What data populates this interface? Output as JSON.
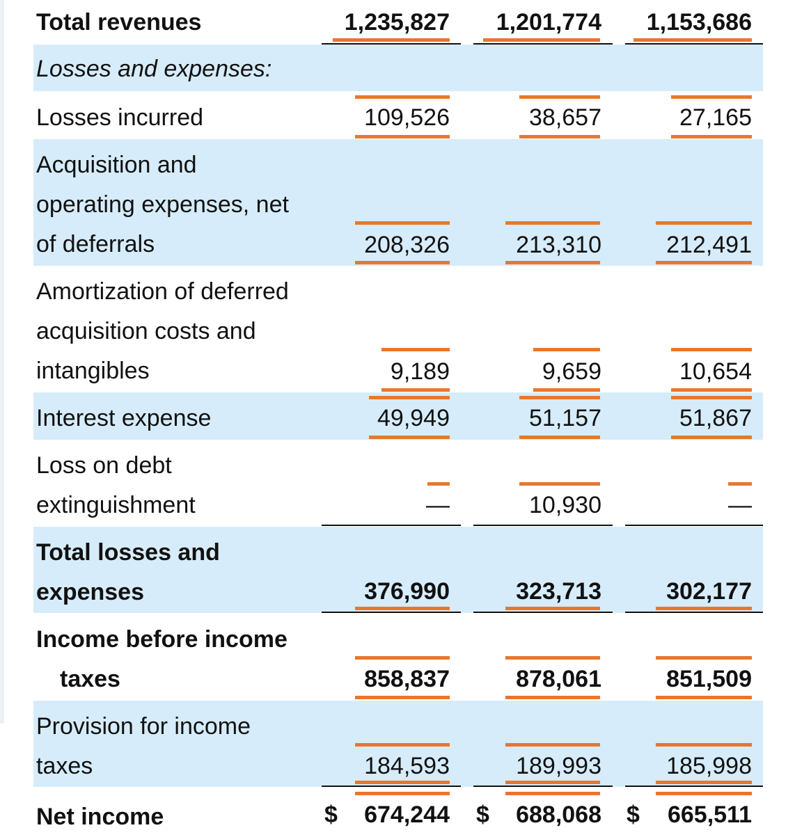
{
  "statement": {
    "rows": [
      {
        "id": "total-revenues",
        "label_lines": [
          "Total revenues"
        ],
        "values": [
          "1,235,827",
          "1,201,774",
          "1,153,686"
        ]
      },
      {
        "id": "losses-and-expenses-heading",
        "label_lines": [
          "Losses and expenses:"
        ],
        "values": []
      },
      {
        "id": "losses-incurred",
        "label_lines": [
          "Losses incurred"
        ],
        "values": [
          "109,526",
          "38,657",
          "27,165"
        ]
      },
      {
        "id": "acquisition-operating-expenses",
        "label_lines": [
          "Acquisition and",
          "operating expenses, net",
          "of deferrals"
        ],
        "values": [
          "208,326",
          "213,310",
          "212,491"
        ]
      },
      {
        "id": "amortization-deferred-costs",
        "label_lines": [
          "Amortization of deferred",
          "acquisition costs and",
          "intangibles"
        ],
        "values": [
          "9,189",
          "9,659",
          "10,654"
        ]
      },
      {
        "id": "interest-expense",
        "label_lines": [
          "Interest expense"
        ],
        "values": [
          "49,949",
          "51,157",
          "51,867"
        ]
      },
      {
        "id": "loss-on-debt-extinguishment",
        "label_lines": [
          "Loss on debt",
          "extinguishment"
        ],
        "values": [
          "—",
          "10,930",
          "—"
        ]
      },
      {
        "id": "total-losses-and-expenses",
        "label_lines": [
          "Total losses and",
          "expenses"
        ],
        "values": [
          "376,990",
          "323,713",
          "302,177"
        ]
      },
      {
        "id": "income-before-income-taxes",
        "label_lines": [
          "Income before income",
          "taxes"
        ],
        "values": [
          "858,837",
          "878,061",
          "851,509"
        ]
      },
      {
        "id": "provision-for-income-taxes",
        "label_lines": [
          "Provision for income",
          "taxes"
        ],
        "values": [
          "184,593",
          "189,993",
          "185,998"
        ]
      },
      {
        "id": "net-income",
        "label_lines": [
          "Net income"
        ],
        "values": [
          "674,244",
          "688,068",
          "665,511"
        ],
        "currency_symbol": "$"
      }
    ]
  },
  "colors": {
    "row_shade": "#d6ecfa",
    "highlight_bar": "#e8772e",
    "rule": "#111111"
  }
}
